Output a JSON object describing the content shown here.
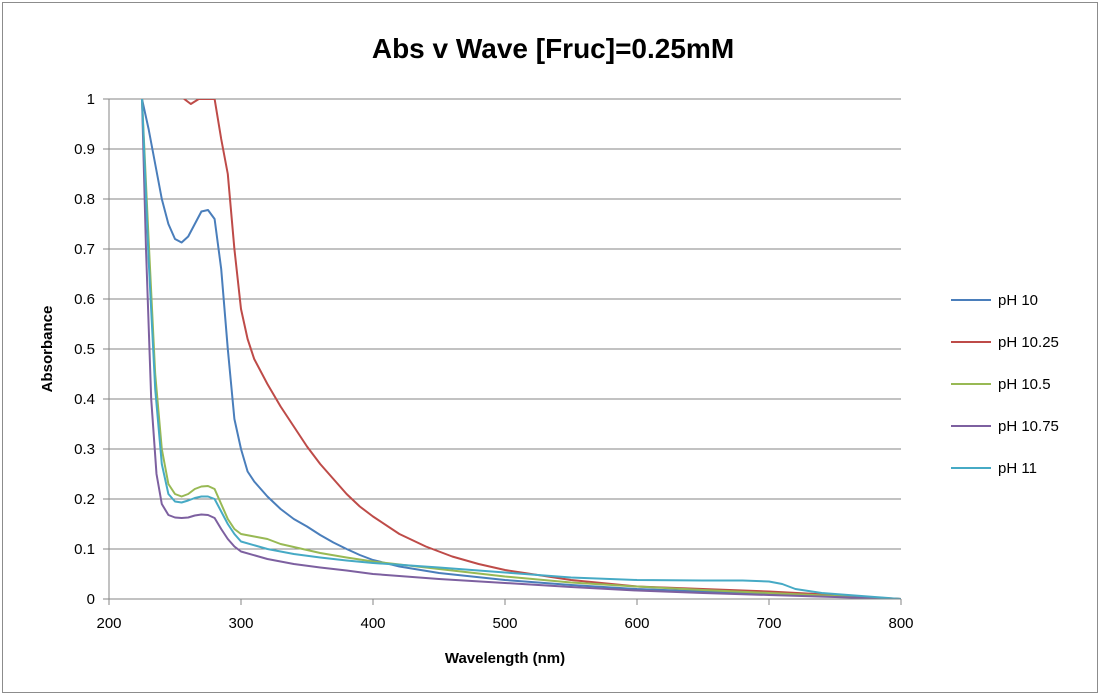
{
  "chart_data": {
    "type": "line",
    "title": "Abs v Wave [Fruc]=0.25mM",
    "xlabel": "Wavelength (nm)",
    "ylabel": "Absorbance",
    "xlim": [
      200,
      800
    ],
    "ylim": [
      0,
      1
    ],
    "x_ticks": [
      "200",
      "300",
      "400",
      "500",
      "600",
      "700",
      "800"
    ],
    "y_ticks": [
      "0",
      "0.1",
      "0.2",
      "0.3",
      "0.4",
      "0.5",
      "0.6",
      "0.7",
      "0.8",
      "0.9",
      "1"
    ],
    "grid": "horizontal",
    "legend_position": "right",
    "series": [
      {
        "name": "pH 10",
        "color": "#4a7ebb",
        "points": [
          [
            225,
            1.0
          ],
          [
            230,
            0.94
          ],
          [
            235,
            0.87
          ],
          [
            240,
            0.8
          ],
          [
            245,
            0.75
          ],
          [
            250,
            0.72
          ],
          [
            255,
            0.713
          ],
          [
            260,
            0.725
          ],
          [
            265,
            0.75
          ],
          [
            270,
            0.775
          ],
          [
            275,
            0.778
          ],
          [
            280,
            0.76
          ],
          [
            285,
            0.66
          ],
          [
            290,
            0.5
          ],
          [
            295,
            0.36
          ],
          [
            300,
            0.3
          ],
          [
            305,
            0.255
          ],
          [
            310,
            0.235
          ],
          [
            320,
            0.205
          ],
          [
            330,
            0.18
          ],
          [
            340,
            0.16
          ],
          [
            350,
            0.145
          ],
          [
            360,
            0.128
          ],
          [
            370,
            0.113
          ],
          [
            380,
            0.1
          ],
          [
            390,
            0.088
          ],
          [
            400,
            0.078
          ],
          [
            420,
            0.065
          ],
          [
            450,
            0.052
          ],
          [
            500,
            0.038
          ],
          [
            550,
            0.028
          ],
          [
            600,
            0.02
          ],
          [
            650,
            0.015
          ],
          [
            700,
            0.01
          ],
          [
            750,
            0.006
          ],
          [
            800,
            0.0
          ]
        ]
      },
      {
        "name": "pH 10.25",
        "color": "#be4b48",
        "points": [
          [
            257,
            1.0
          ],
          [
            262,
            0.99
          ],
          [
            268,
            1.0
          ],
          [
            280,
            1.0
          ],
          [
            285,
            0.92
          ],
          [
            290,
            0.85
          ],
          [
            295,
            0.7
          ],
          [
            300,
            0.58
          ],
          [
            305,
            0.52
          ],
          [
            310,
            0.48
          ],
          [
            320,
            0.43
          ],
          [
            330,
            0.385
          ],
          [
            340,
            0.345
          ],
          [
            350,
            0.305
          ],
          [
            360,
            0.27
          ],
          [
            370,
            0.24
          ],
          [
            380,
            0.21
          ],
          [
            390,
            0.185
          ],
          [
            400,
            0.165
          ],
          [
            420,
            0.13
          ],
          [
            440,
            0.105
          ],
          [
            460,
            0.085
          ],
          [
            480,
            0.07
          ],
          [
            500,
            0.058
          ],
          [
            550,
            0.038
          ],
          [
            600,
            0.025
          ],
          [
            650,
            0.02
          ],
          [
            700,
            0.015
          ],
          [
            750,
            0.008
          ],
          [
            800,
            0.0
          ]
        ]
      },
      {
        "name": "pH 10.5",
        "color": "#98b954",
        "points": [
          [
            225,
            1.0
          ],
          [
            230,
            0.72
          ],
          [
            235,
            0.45
          ],
          [
            240,
            0.3
          ],
          [
            245,
            0.23
          ],
          [
            250,
            0.21
          ],
          [
            255,
            0.205
          ],
          [
            260,
            0.21
          ],
          [
            265,
            0.22
          ],
          [
            270,
            0.225
          ],
          [
            275,
            0.226
          ],
          [
            280,
            0.22
          ],
          [
            285,
            0.19
          ],
          [
            290,
            0.16
          ],
          [
            295,
            0.14
          ],
          [
            300,
            0.13
          ],
          [
            310,
            0.125
          ],
          [
            320,
            0.12
          ],
          [
            330,
            0.11
          ],
          [
            340,
            0.104
          ],
          [
            350,
            0.098
          ],
          [
            360,
            0.092
          ],
          [
            380,
            0.083
          ],
          [
            400,
            0.075
          ],
          [
            450,
            0.06
          ],
          [
            500,
            0.045
          ],
          [
            550,
            0.033
          ],
          [
            600,
            0.025
          ],
          [
            650,
            0.018
          ],
          [
            700,
            0.012
          ],
          [
            750,
            0.006
          ],
          [
            800,
            0.0
          ]
        ]
      },
      {
        "name": "pH 10.75",
        "color": "#7d60a0",
        "points": [
          [
            225,
            1.0
          ],
          [
            228,
            0.7
          ],
          [
            232,
            0.4
          ],
          [
            236,
            0.25
          ],
          [
            240,
            0.19
          ],
          [
            245,
            0.168
          ],
          [
            250,
            0.163
          ],
          [
            255,
            0.162
          ],
          [
            260,
            0.163
          ],
          [
            265,
            0.167
          ],
          [
            270,
            0.169
          ],
          [
            275,
            0.168
          ],
          [
            280,
            0.162
          ],
          [
            285,
            0.14
          ],
          [
            290,
            0.12
          ],
          [
            295,
            0.105
          ],
          [
            300,
            0.095
          ],
          [
            320,
            0.08
          ],
          [
            340,
            0.07
          ],
          [
            360,
            0.063
          ],
          [
            380,
            0.057
          ],
          [
            400,
            0.05
          ],
          [
            450,
            0.04
          ],
          [
            500,
            0.032
          ],
          [
            550,
            0.024
          ],
          [
            600,
            0.017
          ],
          [
            650,
            0.012
          ],
          [
            700,
            0.008
          ],
          [
            750,
            0.004
          ],
          [
            800,
            0.0
          ]
        ]
      },
      {
        "name": "pH 11",
        "color": "#46aac5",
        "points": [
          [
            225,
            1.0
          ],
          [
            230,
            0.68
          ],
          [
            235,
            0.42
          ],
          [
            240,
            0.27
          ],
          [
            245,
            0.21
          ],
          [
            250,
            0.195
          ],
          [
            255,
            0.193
          ],
          [
            260,
            0.197
          ],
          [
            265,
            0.202
          ],
          [
            270,
            0.205
          ],
          [
            275,
            0.205
          ],
          [
            280,
            0.2
          ],
          [
            285,
            0.175
          ],
          [
            290,
            0.15
          ],
          [
            295,
            0.13
          ],
          [
            300,
            0.115
          ],
          [
            320,
            0.1
          ],
          [
            340,
            0.09
          ],
          [
            360,
            0.083
          ],
          [
            380,
            0.077
          ],
          [
            400,
            0.072
          ],
          [
            450,
            0.063
          ],
          [
            500,
            0.053
          ],
          [
            550,
            0.043
          ],
          [
            600,
            0.038
          ],
          [
            650,
            0.037
          ],
          [
            680,
            0.037
          ],
          [
            700,
            0.035
          ],
          [
            710,
            0.03
          ],
          [
            720,
            0.02
          ],
          [
            740,
            0.012
          ],
          [
            760,
            0.008
          ],
          [
            780,
            0.004
          ],
          [
            800,
            0.0
          ]
        ]
      }
    ]
  }
}
